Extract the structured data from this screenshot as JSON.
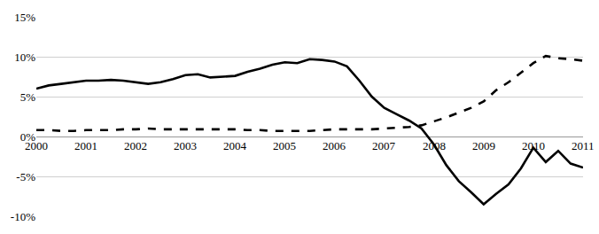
{
  "chart_data": {
    "type": "line",
    "x": [
      2000,
      2000.25,
      2000.5,
      2000.75,
      2001,
      2001.25,
      2001.5,
      2001.75,
      2002,
      2002.25,
      2002.5,
      2002.75,
      2003,
      2003.25,
      2003.5,
      2003.75,
      2004,
      2004.25,
      2004.5,
      2004.75,
      2005,
      2005.25,
      2005.5,
      2005.75,
      2006,
      2006.25,
      2006.5,
      2006.75,
      2007,
      2007.25,
      2007.5,
      2007.75,
      2008,
      2008.25,
      2008.5,
      2008.75,
      2009,
      2009.25,
      2009.5,
      2009.75,
      2010,
      2010.25,
      2010.5,
      2010.75,
      2011
    ],
    "series": [
      {
        "color": "#000000",
        "line_style": "solid",
        "values": [
          6.0,
          6.4,
          6.6,
          6.8,
          7.0,
          7.0,
          7.1,
          7.0,
          6.8,
          6.6,
          6.8,
          7.2,
          7.7,
          7.8,
          7.4,
          7.5,
          7.6,
          8.1,
          8.5,
          9.0,
          9.3,
          9.2,
          9.7,
          9.6,
          9.4,
          8.8,
          7.0,
          5.0,
          3.6,
          2.8,
          2.0,
          1.0,
          -1.0,
          -3.6,
          -5.6,
          -7.0,
          -8.5,
          -7.2,
          -6.0,
          -4.0,
          -1.4,
          -3.2,
          -1.8,
          -3.4,
          -3.9
        ]
      },
      {
        "color": "#000000",
        "line_style": "dash",
        "values": [
          0.8,
          0.8,
          0.7,
          0.7,
          0.8,
          0.8,
          0.8,
          0.9,
          0.9,
          1.0,
          0.9,
          0.9,
          0.9,
          0.9,
          0.9,
          0.9,
          0.9,
          0.8,
          0.8,
          0.7,
          0.7,
          0.7,
          0.7,
          0.8,
          0.9,
          0.9,
          0.9,
          0.9,
          1.0,
          1.1,
          1.2,
          1.4,
          1.9,
          2.4,
          3.0,
          3.6,
          4.4,
          5.8,
          6.8,
          8.0,
          9.2,
          10.1,
          9.8,
          9.7,
          9.5
        ]
      }
    ],
    "xlim": [
      2000,
      2011
    ],
    "xticks": [
      2000,
      2001,
      2002,
      2003,
      2004,
      2005,
      2006,
      2007,
      2008,
      2009,
      2010,
      2011
    ],
    "ylim": [
      -10,
      15
    ],
    "yticks": [
      {
        "value": -10,
        "label": "-10%"
      },
      {
        "value": -5,
        "label": "-5%"
      },
      {
        "value": 0,
        "label": "0%"
      },
      {
        "value": 5,
        "label": "5%"
      },
      {
        "value": 10,
        "label": "10%"
      },
      {
        "value": 15,
        "label": "15%"
      }
    ],
    "grid": true
  }
}
